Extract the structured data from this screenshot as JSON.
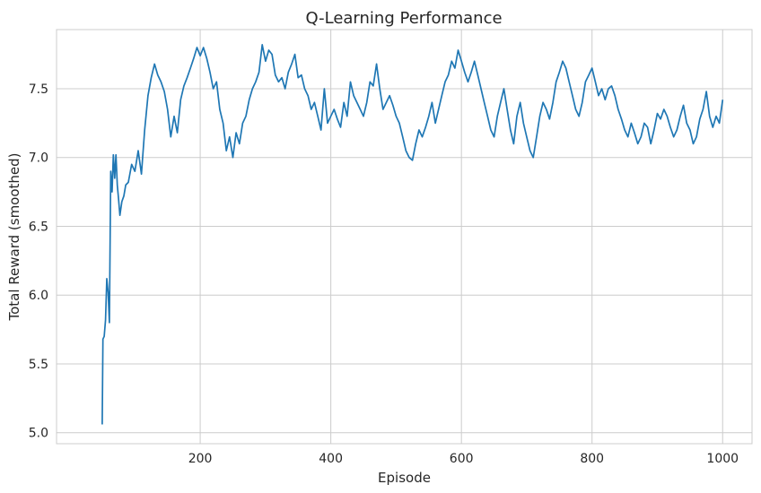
{
  "chart_data": {
    "type": "line",
    "title": "Q-Learning Performance",
    "xlabel": "Episode",
    "ylabel": "Total Reward (smoothed)",
    "xlim": [
      -20,
      1045
    ],
    "ylim": [
      4.92,
      7.93
    ],
    "xticks": [
      200,
      400,
      600,
      800,
      1000
    ],
    "xtick_labels": [
      "200",
      "400",
      "600",
      "800",
      "1000"
    ],
    "yticks": [
      5.0,
      5.5,
      6.0,
      6.5,
      7.0,
      7.5
    ],
    "ytick_labels": [
      "5.0",
      "5.5",
      "6.0",
      "6.5",
      "7.0",
      "7.5"
    ],
    "grid": true,
    "series": [
      {
        "name": "Total Reward (smoothed)",
        "color": "#1f77b4",
        "x": [
          50,
          51,
          53,
          55,
          57,
          59,
          61,
          63,
          65,
          67,
          69,
          71,
          73,
          75,
          77,
          80,
          83,
          86,
          90,
          95,
          100,
          105,
          110,
          115,
          120,
          125,
          130,
          135,
          140,
          145,
          150,
          155,
          160,
          165,
          170,
          175,
          180,
          185,
          190,
          195,
          200,
          205,
          210,
          215,
          220,
          225,
          230,
          235,
          240,
          245,
          250,
          255,
          260,
          265,
          270,
          275,
          280,
          285,
          290,
          295,
          300,
          305,
          310,
          315,
          320,
          325,
          330,
          335,
          340,
          345,
          350,
          355,
          360,
          365,
          370,
          375,
          380,
          385,
          390,
          395,
          400,
          405,
          410,
          415,
          420,
          425,
          430,
          435,
          440,
          445,
          450,
          455,
          460,
          465,
          470,
          475,
          480,
          485,
          490,
          495,
          500,
          505,
          510,
          515,
          520,
          525,
          530,
          535,
          540,
          545,
          550,
          555,
          560,
          565,
          570,
          575,
          580,
          585,
          590,
          595,
          600,
          605,
          610,
          615,
          620,
          625,
          630,
          635,
          640,
          645,
          650,
          655,
          660,
          665,
          670,
          675,
          680,
          685,
          690,
          695,
          700,
          705,
          710,
          715,
          720,
          725,
          730,
          735,
          740,
          745,
          750,
          755,
          760,
          765,
          770,
          775,
          780,
          785,
          790,
          795,
          800,
          805,
          810,
          815,
          820,
          825,
          830,
          835,
          840,
          845,
          850,
          855,
          860,
          865,
          870,
          875,
          880,
          885,
          890,
          895,
          900,
          905,
          910,
          915,
          920,
          925,
          930,
          935,
          940,
          945,
          950,
          955,
          960,
          965,
          970,
          975,
          980,
          985,
          990,
          995,
          1000
        ],
        "y": [
          5.06,
          5.68,
          5.7,
          5.82,
          6.12,
          6.02,
          5.8,
          6.9,
          6.75,
          7.02,
          6.85,
          7.02,
          6.8,
          6.7,
          6.58,
          6.68,
          6.72,
          6.8,
          6.82,
          6.95,
          6.9,
          7.05,
          6.88,
          7.2,
          7.45,
          7.58,
          7.68,
          7.6,
          7.55,
          7.48,
          7.35,
          7.15,
          7.3,
          7.18,
          7.42,
          7.52,
          7.58,
          7.65,
          7.72,
          7.8,
          7.74,
          7.8,
          7.72,
          7.62,
          7.5,
          7.55,
          7.35,
          7.25,
          7.05,
          7.15,
          7.0,
          7.18,
          7.1,
          7.25,
          7.3,
          7.42,
          7.5,
          7.55,
          7.62,
          7.82,
          7.7,
          7.78,
          7.75,
          7.6,
          7.55,
          7.58,
          7.5,
          7.62,
          7.68,
          7.75,
          7.58,
          7.6,
          7.5,
          7.45,
          7.35,
          7.4,
          7.3,
          7.2,
          7.5,
          7.25,
          7.3,
          7.35,
          7.28,
          7.22,
          7.4,
          7.3,
          7.55,
          7.45,
          7.4,
          7.35,
          7.3,
          7.4,
          7.55,
          7.52,
          7.68,
          7.5,
          7.35,
          7.4,
          7.45,
          7.38,
          7.3,
          7.25,
          7.15,
          7.05,
          7.0,
          6.98,
          7.1,
          7.2,
          7.15,
          7.22,
          7.3,
          7.4,
          7.25,
          7.35,
          7.45,
          7.55,
          7.6,
          7.7,
          7.65,
          7.78,
          7.7,
          7.62,
          7.55,
          7.62,
          7.7,
          7.6,
          7.5,
          7.4,
          7.3,
          7.2,
          7.15,
          7.3,
          7.4,
          7.5,
          7.35,
          7.2,
          7.1,
          7.3,
          7.4,
          7.25,
          7.15,
          7.05,
          7.0,
          7.15,
          7.3,
          7.4,
          7.35,
          7.28,
          7.4,
          7.55,
          7.62,
          7.7,
          7.65,
          7.55,
          7.45,
          7.35,
          7.3,
          7.4,
          7.55,
          7.6,
          7.65,
          7.55,
          7.45,
          7.5,
          7.42,
          7.5,
          7.52,
          7.45,
          7.35,
          7.28,
          7.2,
          7.15,
          7.25,
          7.18,
          7.1,
          7.15,
          7.25,
          7.22,
          7.1,
          7.2,
          7.32,
          7.28,
          7.35,
          7.3,
          7.22,
          7.15,
          7.2,
          7.3,
          7.38,
          7.25,
          7.2,
          7.1,
          7.15,
          7.28,
          7.35,
          7.48,
          7.3,
          7.22,
          7.3,
          7.25,
          7.42
        ]
      }
    ]
  }
}
